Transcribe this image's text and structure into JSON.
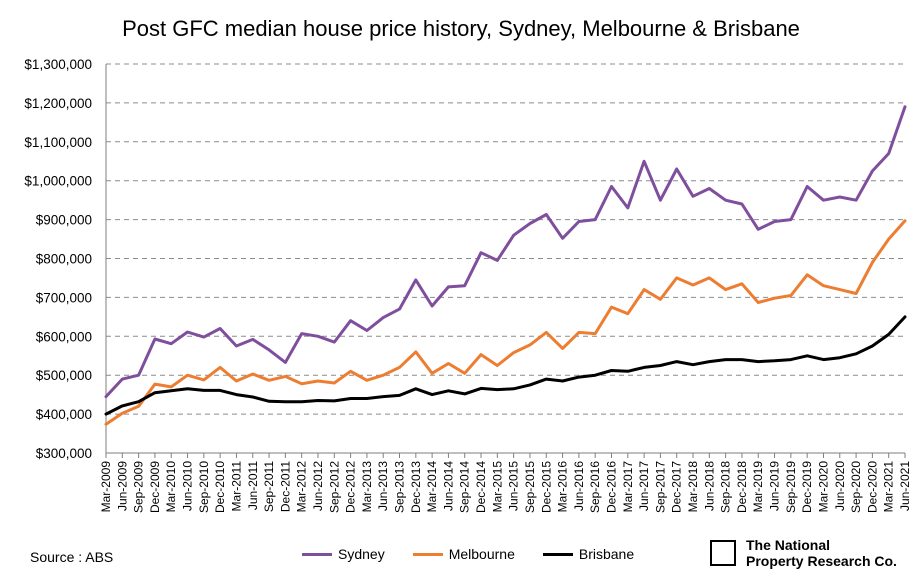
{
  "chart_data": {
    "type": "line",
    "title": "Post GFC median house price history, Sydney, Melbourne & Brisbane",
    "xlabel": "",
    "ylabel": "",
    "ylim": [
      300000,
      1300000
    ],
    "yticks": [
      "$300,000",
      "$400,000",
      "$500,000",
      "$600,000",
      "$700,000",
      "$800,000",
      "$900,000",
      "$1,000,000",
      "$1,100,000",
      "$1,200,000",
      "$1,300,000"
    ],
    "grid": "horizontal dashed",
    "legend_position": "bottom",
    "categories": [
      "Mar-2009",
      "Jun-2009",
      "Sep-2009",
      "Dec-2009",
      "Mar-2010",
      "Jun-2010",
      "Sep-2010",
      "Dec-2010",
      "Mar-2011",
      "Jun-2011",
      "Sep-2011",
      "Dec-2011",
      "Mar-2012",
      "Jun-2012",
      "Sep-2012",
      "Dec-2012",
      "Mar-2013",
      "Jun-2013",
      "Sep-2013",
      "Dec-2013",
      "Mar-2014",
      "Jun-2014",
      "Sep-2014",
      "Dec-2014",
      "Mar-2015",
      "Jun-2015",
      "Sep-2015",
      "Dec-2015",
      "Mar-2016",
      "Jun-2016",
      "Sep-2016",
      "Dec-2016",
      "Mar-2017",
      "Jun-2017",
      "Sep-2017",
      "Dec-2017",
      "Mar-2018",
      "Jun-2018",
      "Sep-2018",
      "Dec-2018",
      "Mar-2019",
      "Jun-2019",
      "Sep-2019",
      "Dec-2019",
      "Mar-2020",
      "Jun-2020",
      "Sep-2020",
      "Dec-2020",
      "Mar-2021",
      "Jun-2021"
    ],
    "series": [
      {
        "name": "Sydney",
        "color": "#7f4f9e",
        "values": [
          445000,
          490000,
          500000,
          593000,
          581000,
          611000,
          598000,
          620000,
          575000,
          592000,
          565000,
          533000,
          607000,
          600000,
          585000,
          640000,
          615000,
          648000,
          670000,
          745000,
          678000,
          727000,
          730000,
          815000,
          795000,
          860000,
          890000,
          913000,
          852000,
          895000,
          900000,
          985000,
          930000,
          1050000,
          950000,
          1030000,
          960000,
          980000,
          950000,
          940000,
          875000,
          895000,
          900000,
          985000,
          950000,
          958000,
          950000,
          1025000,
          1070000,
          1190000
        ]
      },
      {
        "name": "Melbourne",
        "color": "#ed7d31",
        "values": [
          374000,
          402000,
          420000,
          477000,
          470000,
          500000,
          488000,
          520000,
          485000,
          503000,
          487000,
          497000,
          478000,
          485000,
          480000,
          510000,
          487000,
          500000,
          520000,
          560000,
          505000,
          530000,
          505000,
          553000,
          525000,
          558000,
          578000,
          610000,
          569000,
          610000,
          607000,
          675000,
          658000,
          720000,
          695000,
          750000,
          732000,
          750000,
          720000,
          735000,
          687000,
          698000,
          705000,
          758000,
          730000,
          720000,
          710000,
          790000,
          850000,
          897000
        ]
      },
      {
        "name": "Brisbane",
        "color": "#000000",
        "values": [
          400000,
          421000,
          432000,
          455000,
          460000,
          465000,
          461000,
          461000,
          450000,
          444000,
          433000,
          432000,
          432000,
          435000,
          434000,
          440000,
          440000,
          445000,
          448000,
          465000,
          450000,
          460000,
          452000,
          466000,
          463000,
          465000,
          475000,
          490000,
          485000,
          495000,
          500000,
          512000,
          510000,
          520000,
          525000,
          535000,
          527000,
          535000,
          540000,
          540000,
          535000,
          537000,
          540000,
          550000,
          540000,
          545000,
          555000,
          575000,
          605000,
          650000
        ]
      }
    ]
  },
  "footer": {
    "source": "Source : ABS",
    "logo_line1": "The National",
    "logo_line2": "Property Research Co."
  }
}
